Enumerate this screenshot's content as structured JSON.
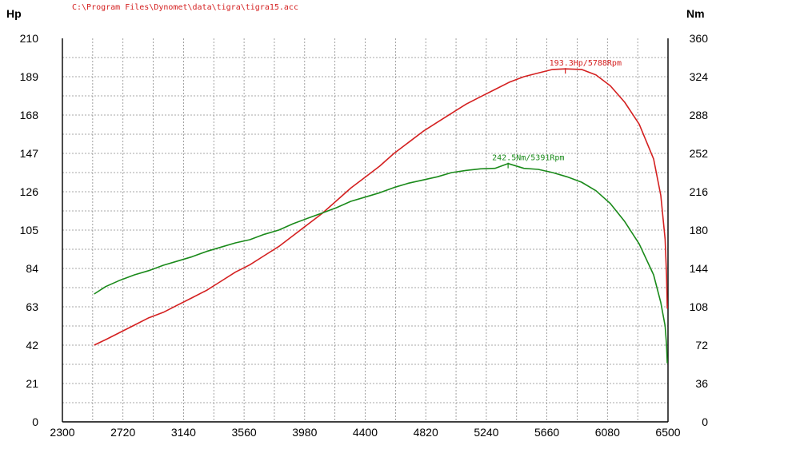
{
  "file_path": "C:\\Program Files\\Dynomet\\data\\tigra\\tigra15.acc",
  "colors": {
    "power": "#d42020",
    "torque": "#1a8a1a",
    "grid": "#8a8a8a",
    "axis": "#000000"
  },
  "chart_data": {
    "type": "line",
    "left_axis_unit": "Hp",
    "right_axis_unit": "Nm",
    "xlim": [
      2300,
      6500
    ],
    "ylim_left": [
      0,
      210
    ],
    "ylim_right": [
      0,
      360
    ],
    "x_ticks": [
      "2300",
      "2720",
      "3140",
      "3560",
      "3980",
      "4400",
      "4820",
      "5240",
      "5660",
      "6080",
      "6500"
    ],
    "y_left_ticks": [
      "0",
      "21",
      "42",
      "63",
      "84",
      "105",
      "126",
      "147",
      "168",
      "189",
      "210"
    ],
    "y_right_ticks": [
      "0",
      "36",
      "72",
      "108",
      "144",
      "180",
      "216",
      "252",
      "288",
      "324",
      "360"
    ],
    "grid": true,
    "series": [
      {
        "key": "power",
        "axis": "left",
        "color": "#d42020",
        "x": [
          2520,
          2600,
          2700,
          2800,
          2900,
          3000,
          3100,
          3200,
          3300,
          3400,
          3500,
          3600,
          3700,
          3800,
          3900,
          4000,
          4100,
          4200,
          4300,
          4400,
          4500,
          4600,
          4700,
          4800,
          4900,
          5000,
          5100,
          5200,
          5300,
          5400,
          5500,
          5600,
          5700,
          5788,
          5900,
          6000,
          6100,
          6200,
          6300,
          6400,
          6450,
          6480,
          6490,
          6495
        ],
        "y": [
          42,
          45,
          49,
          53,
          57,
          60,
          64,
          68,
          72,
          77,
          82,
          86,
          91,
          96,
          102,
          108,
          114,
          121,
          128,
          134,
          140,
          147,
          153,
          159,
          164,
          169,
          174,
          178,
          182,
          186,
          189,
          191,
          193,
          193.3,
          193,
          190,
          184,
          175,
          163,
          144,
          124,
          100,
          80,
          62
        ]
      },
      {
        "key": "torque",
        "axis": "right",
        "color": "#1a8a1a",
        "x": [
          2520,
          2600,
          2700,
          2800,
          2900,
          3000,
          3100,
          3200,
          3300,
          3400,
          3500,
          3600,
          3700,
          3800,
          3900,
          4000,
          4100,
          4200,
          4300,
          4400,
          4500,
          4600,
          4700,
          4800,
          4900,
          5000,
          5100,
          5200,
          5300,
          5391,
          5500,
          5600,
          5700,
          5800,
          5900,
          6000,
          6100,
          6200,
          6300,
          6400,
          6450,
          6480,
          6490,
          6495
        ],
        "y": [
          120,
          127,
          133,
          138,
          142,
          147,
          151,
          155,
          160,
          164,
          168,
          171,
          176,
          180,
          186,
          191,
          196,
          201,
          207,
          211,
          215,
          220,
          224,
          227,
          230,
          234,
          236,
          237.5,
          238,
          242.5,
          238,
          237,
          234,
          230,
          225,
          217,
          205,
          188,
          167,
          138,
          112,
          90,
          72,
          55
        ]
      }
    ],
    "annotations": [
      {
        "series": "power",
        "text": "193.3Hp/5788Rpm",
        "x": 5788,
        "y": 193.3
      },
      {
        "series": "torque",
        "text": "242.5Nm/5391Rpm",
        "x": 5391,
        "y": 242.5
      }
    ]
  }
}
